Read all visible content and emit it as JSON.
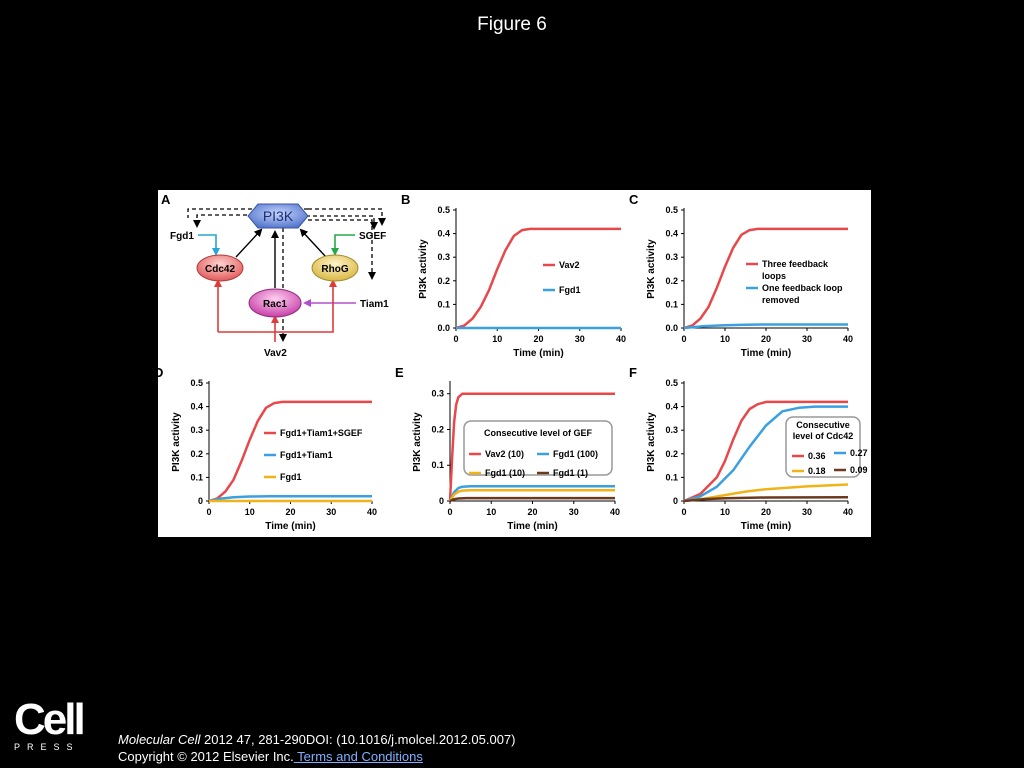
{
  "slide": {
    "title": "Figure 6",
    "journal": "Molecular Cell",
    "citation_rest": " 2012 47, 281-290DOI: (10.1016/j.molcel.2012.05.007)",
    "copyright": "Copyright © 2012 Elsevier Inc.",
    "terms_link": " Terms and Conditions",
    "logo_word": "Cell",
    "logo_press": "PRESS"
  },
  "diagram": {
    "panel_letter": "A",
    "center_node": "PI3K",
    "nodes": {
      "cdc42": "Cdc42",
      "rhog": "RhoG",
      "rac1": "Rac1"
    },
    "inputs": {
      "fgd1": "Fgd1",
      "sgef": "SGEF",
      "tiam1": "Tiam1",
      "vav2": "Vav2"
    },
    "colors": {
      "cdc42": "#e05a5a",
      "rhog": "#d9b844",
      "rac1": "#c73fa8",
      "pi3k": "#5577cc",
      "fgd1_arrow": "#25a6d8",
      "sgef_arrow": "#27a84a",
      "tiam1_arrow": "#b050c8",
      "vav2_arrow": "#e03a3a"
    }
  },
  "chart_data": [
    {
      "panel": "B",
      "type": "line",
      "xlabel": "Time (min)",
      "ylabel": "PI3K activity",
      "xlim": [
        0,
        40
      ],
      "ylim": [
        0,
        0.5
      ],
      "xticks": [
        "0",
        "10",
        "20",
        "30",
        "40"
      ],
      "yticks": [
        "0.0",
        "0.1",
        "0.2",
        "0.3",
        "0.4",
        "0.5"
      ],
      "series": [
        {
          "name": "Vav2",
          "color": "#e8484a",
          "x": [
            0,
            2,
            4,
            6,
            8,
            10,
            12,
            14,
            16,
            18,
            20,
            25,
            30,
            35,
            40
          ],
          "y": [
            0,
            0.01,
            0.04,
            0.09,
            0.16,
            0.25,
            0.33,
            0.39,
            0.415,
            0.42,
            0.42,
            0.42,
            0.42,
            0.42,
            0.42
          ]
        },
        {
          "name": "Fgd1",
          "color": "#3aa0e0",
          "x": [
            0,
            40
          ],
          "y": [
            0,
            0
          ]
        }
      ]
    },
    {
      "panel": "C",
      "type": "line",
      "xlabel": "Time (min)",
      "ylabel": "PI3K activity",
      "xlim": [
        0,
        40
      ],
      "ylim": [
        0,
        0.5
      ],
      "xticks": [
        "0",
        "10",
        "20",
        "30",
        "40"
      ],
      "yticks": [
        "0.0",
        "0.1",
        "0.2",
        "0.3",
        "0.4",
        "0.5"
      ],
      "series": [
        {
          "name": "Three feedback loops",
          "color": "#e8484a",
          "x": [
            0,
            2,
            4,
            6,
            8,
            10,
            12,
            14,
            16,
            18,
            20,
            25,
            30,
            35,
            40
          ],
          "y": [
            0,
            0.01,
            0.04,
            0.09,
            0.17,
            0.26,
            0.34,
            0.395,
            0.415,
            0.42,
            0.42,
            0.42,
            0.42,
            0.42,
            0.42
          ]
        },
        {
          "name": "One feedback loop removed",
          "color": "#3aa0e0",
          "x": [
            0,
            5,
            10,
            15,
            20,
            30,
            40
          ],
          "y": [
            0,
            0.008,
            0.012,
            0.014,
            0.015,
            0.015,
            0.015
          ]
        }
      ]
    },
    {
      "panel": "D",
      "type": "line",
      "xlabel": "Time (min)",
      "ylabel": "PI3K activity",
      "xlim": [
        0,
        40
      ],
      "ylim": [
        0,
        0.5
      ],
      "xticks": [
        "0",
        "10",
        "20",
        "30",
        "40"
      ],
      "yticks": [
        "0",
        "0.1",
        "0.2",
        "0.3",
        "0.4",
        "0.5"
      ],
      "series": [
        {
          "name": "Fgd1+Tiam1+SGEF",
          "color": "#e8484a",
          "x": [
            0,
            2,
            4,
            6,
            8,
            10,
            12,
            14,
            16,
            18,
            20,
            25,
            30,
            35,
            40
          ],
          "y": [
            0,
            0.01,
            0.04,
            0.09,
            0.17,
            0.26,
            0.34,
            0.395,
            0.415,
            0.42,
            0.42,
            0.42,
            0.42,
            0.42,
            0.42
          ]
        },
        {
          "name": "Fgd1+Tiam1",
          "color": "#3aa0e0",
          "x": [
            0,
            3,
            6,
            10,
            15,
            20,
            30,
            40
          ],
          "y": [
            0,
            0.01,
            0.016,
            0.019,
            0.02,
            0.02,
            0.02,
            0.02
          ]
        },
        {
          "name": "Fgd1",
          "color": "#f0b419",
          "x": [
            0,
            40
          ],
          "y": [
            0,
            0
          ]
        }
      ]
    },
    {
      "panel": "E",
      "type": "line",
      "xlabel": "Time (min)",
      "ylabel": "PI3K activity",
      "xlim": [
        0,
        40
      ],
      "ylim": [
        0,
        0.33
      ],
      "xticks": [
        "0",
        "10",
        "20",
        "30",
        "40"
      ],
      "yticks": [
        "0",
        "0.1",
        "0.2",
        "0.3"
      ],
      "legend_title": "Consecutive level of GEF",
      "series": [
        {
          "name": "Vav2 (10)",
          "color": "#e8484a",
          "x": [
            0,
            0.5,
            1,
            1.5,
            2,
            3,
            4,
            40
          ],
          "y": [
            0,
            0.12,
            0.22,
            0.27,
            0.29,
            0.3,
            0.3,
            0.3
          ]
        },
        {
          "name": "Fgd1 (100)",
          "color": "#3aa0e0",
          "x": [
            0,
            1,
            2,
            3,
            5,
            40
          ],
          "y": [
            0,
            0.025,
            0.036,
            0.04,
            0.041,
            0.041
          ]
        },
        {
          "name": "Fgd1 (10)",
          "color": "#f0b419",
          "x": [
            0,
            1,
            2,
            3,
            5,
            40
          ],
          "y": [
            0,
            0.018,
            0.026,
            0.029,
            0.03,
            0.03
          ]
        },
        {
          "name": "Fgd1 (1)",
          "color": "#6b3a1e",
          "x": [
            0,
            1,
            2,
            4,
            40
          ],
          "y": [
            0,
            0.005,
            0.007,
            0.008,
            0.008
          ]
        }
      ]
    },
    {
      "panel": "F",
      "type": "line",
      "xlabel": "Time (min)",
      "ylabel": "PI3K  activity",
      "xlim": [
        0,
        40
      ],
      "ylim": [
        0,
        0.5
      ],
      "xticks": [
        "0",
        "10",
        "20",
        "30",
        "40"
      ],
      "yticks": [
        "0",
        "0.1",
        "0.2",
        "0.3",
        "0.4",
        "0.5"
      ],
      "legend_title": "Consecutive level of Cdc42",
      "series": [
        {
          "name": "0.36",
          "color": "#e8484a",
          "x": [
            0,
            4,
            8,
            10,
            12,
            14,
            16,
            18,
            20,
            24,
            30,
            40
          ],
          "y": [
            0,
            0.03,
            0.1,
            0.17,
            0.26,
            0.34,
            0.39,
            0.41,
            0.42,
            0.42,
            0.42,
            0.42
          ]
        },
        {
          "name": "0.27",
          "color": "#3aa0e0",
          "x": [
            0,
            4,
            8,
            12,
            16,
            20,
            24,
            28,
            32,
            40
          ],
          "y": [
            0,
            0.02,
            0.06,
            0.13,
            0.23,
            0.32,
            0.38,
            0.395,
            0.4,
            0.4
          ]
        },
        {
          "name": "0.18",
          "color": "#f0b419",
          "x": [
            0,
            5,
            10,
            15,
            20,
            30,
            40
          ],
          "y": [
            0,
            0.01,
            0.025,
            0.04,
            0.05,
            0.062,
            0.07
          ]
        },
        {
          "name": "0.09",
          "color": "#6b3a1e",
          "x": [
            0,
            5,
            10,
            20,
            40
          ],
          "y": [
            0,
            0.008,
            0.012,
            0.015,
            0.016
          ]
        }
      ]
    }
  ]
}
